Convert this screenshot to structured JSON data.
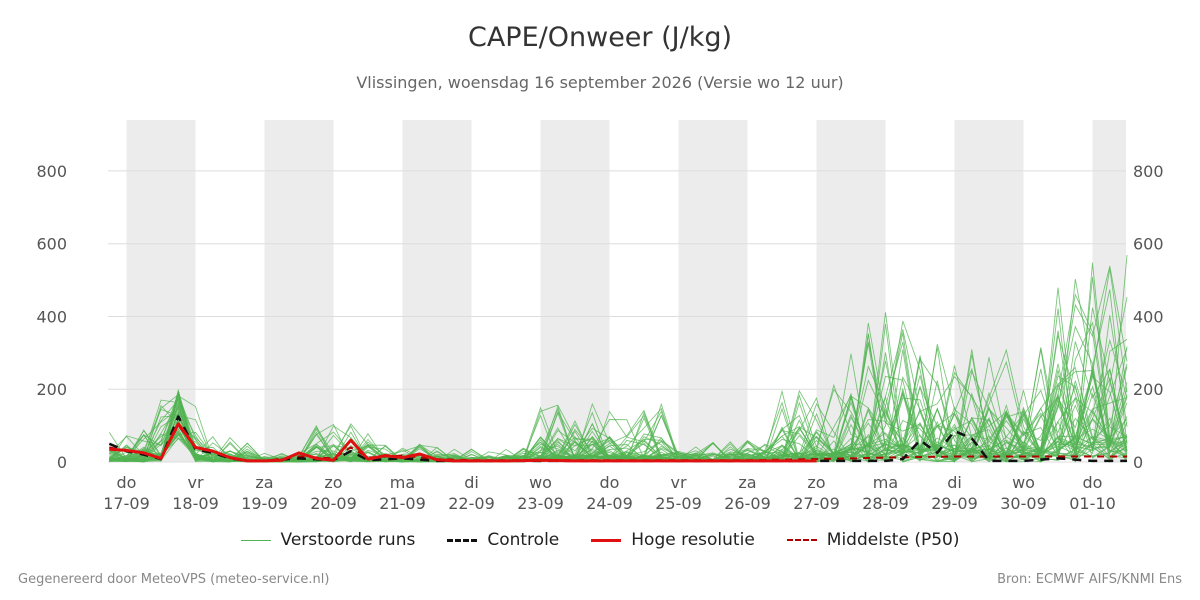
{
  "header": {
    "title": "CAPE/Onweer (J/kg)",
    "subtitle": "Vlissingen, woensdag 16 september 2026 (Versie wo 12 uur)"
  },
  "legend": {
    "runs": "Verstoorde runs",
    "control": "Controle",
    "hires": "Hoge resolutie",
    "median": "Middelste (P50)"
  },
  "footer": {
    "left": "Gegenereerd door MeteoVPS (meteo-service.nl)",
    "right": "Bron: ECMWF AIFS/KNMI Ens"
  },
  "colors": {
    "runs": "#52b352",
    "control": "#111111",
    "hires": "#e01010",
    "median": "#b00000",
    "shade": "#ececec",
    "grid": "#dddddd"
  },
  "chart_data": {
    "type": "line",
    "title": "CAPE/Onweer (J/kg)",
    "subtitle": "Vlissingen, woensdag 16 september 2026 (Versie wo 12 uur)",
    "xlim": [
      -0.25,
      14.5
    ],
    "ylim": [
      0,
      940
    ],
    "yticks": [
      0,
      200,
      400,
      600,
      800
    ],
    "grid": true,
    "legend_position": "bottom",
    "x_ticks": [
      {
        "day": "do",
        "date": "17-09"
      },
      {
        "day": "vr",
        "date": "18-09"
      },
      {
        "day": "za",
        "date": "19-09"
      },
      {
        "day": "zo",
        "date": "20-09"
      },
      {
        "day": "ma",
        "date": "21-09"
      },
      {
        "day": "di",
        "date": "22-09"
      },
      {
        "day": "wo",
        "date": "23-09"
      },
      {
        "day": "do",
        "date": "24-09"
      },
      {
        "day": "vr",
        "date": "25-09"
      },
      {
        "day": "za",
        "date": "26-09"
      },
      {
        "day": "zo",
        "date": "27-09"
      },
      {
        "day": "ma",
        "date": "28-09"
      },
      {
        "day": "di",
        "date": "29-09"
      },
      {
        "day": "wo",
        "date": "30-09"
      },
      {
        "day": "do",
        "date": "01-10"
      }
    ],
    "shaded_days": [
      0,
      2,
      4,
      6,
      8,
      10,
      12,
      14
    ],
    "series": [
      {
        "name": "Hoge resolutie",
        "role": "hires",
        "x": [
          -0.25,
          0,
          0.25,
          0.5,
          0.75,
          1,
          1.25,
          1.5,
          1.75,
          2,
          2.25,
          2.5,
          2.75,
          3,
          3.25,
          3.5,
          3.75,
          4,
          4.25,
          4.5,
          4.75,
          5,
          5.5,
          6,
          6.5,
          7,
          7.5,
          8,
          9,
          10
        ],
        "y": [
          35,
          32,
          25,
          10,
          105,
          40,
          30,
          12,
          3,
          3,
          5,
          25,
          10,
          5,
          60,
          8,
          18,
          12,
          22,
          6,
          3,
          3,
          3,
          5,
          3,
          3,
          3,
          3,
          3,
          3
        ]
      },
      {
        "name": "Controle",
        "role": "control",
        "x": [
          -0.25,
          0,
          0.25,
          0.5,
          0.75,
          1,
          1.25,
          1.5,
          1.75,
          2,
          2.5,
          3,
          3.25,
          3.5,
          4,
          4.5,
          5,
          6,
          7,
          8,
          9,
          10,
          11,
          11.25,
          11.5,
          11.75,
          12,
          12.25,
          12.5,
          13,
          13.5,
          14,
          14.5
        ],
        "y": [
          50,
          30,
          20,
          8,
          125,
          35,
          25,
          10,
          3,
          3,
          10,
          5,
          30,
          5,
          10,
          3,
          3,
          3,
          3,
          3,
          3,
          3,
          3,
          8,
          60,
          25,
          85,
          65,
          3,
          3,
          10,
          3,
          3
        ]
      },
      {
        "name": "Middelste (P50)",
        "role": "median",
        "x": [
          -0.25,
          0,
          0.25,
          0.5,
          0.75,
          1,
          1.25,
          1.5,
          1.75,
          2,
          2.5,
          3,
          3.25,
          3.5,
          4,
          4.5,
          5,
          6,
          7,
          8,
          9,
          10,
          11,
          12,
          13,
          14,
          14.5
        ],
        "y": [
          40,
          30,
          25,
          12,
          100,
          40,
          30,
          12,
          4,
          3,
          15,
          10,
          40,
          12,
          18,
          8,
          5,
          5,
          5,
          5,
          5,
          8,
          12,
          15,
          15,
          15,
          15
        ]
      }
    ]
  }
}
